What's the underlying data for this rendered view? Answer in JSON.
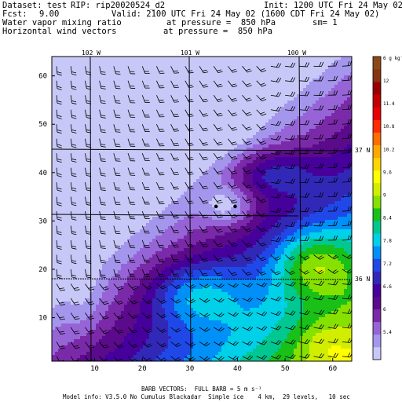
{
  "header": {
    "dataset_label": "Dataset: test",
    "rip_label": "RIP: rip20020524_d2",
    "init": "Init: 1200 UTC Fri 24 May 02",
    "fcst_label": "Fcst:",
    "fcst_value": "9.00",
    "valid": "Valid: 2100 UTC Fri 24 May 02 (1600 CDT Fri 24 May 02)",
    "field1_name": "Water vapor mixing ratio",
    "field1_level": "at pressure =  850 hPa",
    "field1_extra": "sm= 1",
    "field2_name": "Horizontal wind vectors",
    "field2_level": "at pressure =  850 hPa"
  },
  "footer": {
    "barb_note": "BARB VECTORS:  FULL BARB = 5 m s⁻¹",
    "model_info": "Model info: V3.5.0 No Cumulus Blackadar  Simple ice    4 km,  29 levels,   10 sec"
  },
  "map": {
    "x_range": [
      1,
      64
    ],
    "y_range": [
      1,
      64
    ],
    "x_ticks": [
      "10",
      "20",
      "30",
      "40",
      "50",
      "60"
    ],
    "y_ticks": [
      "10",
      "20",
      "30",
      "40",
      "50",
      "60"
    ],
    "lon_labels": [
      "102 W",
      "101 W",
      "100 W"
    ],
    "lat_labels": [
      "37 N",
      "36 N"
    ],
    "stations": [
      [
        35.5,
        33.0
      ],
      [
        39.5,
        33.0
      ]
    ]
  },
  "colorbar": {
    "unit_label": "g kg⁻¹",
    "labels": [
      "12",
      "11.4",
      "10.8",
      "10.2",
      "9.6",
      "9",
      "8.4",
      "7.8",
      "7.2",
      "6.6",
      "6",
      "5.4"
    ],
    "colors": [
      "#c8c8f8",
      "#a496ec",
      "#9664d6",
      "#7a2aa8",
      "#5a0a8a",
      "#46009c",
      "#3228b8",
      "#2048e8",
      "#0090f8",
      "#00d0e8",
      "#00c890",
      "#18c018",
      "#86e000",
      "#d2ee00",
      "#ffff00",
      "#ffd400",
      "#ffa800",
      "#ff6c00",
      "#ff2a00",
      "#e80000",
      "#c20000",
      "#9a0000",
      "#883410",
      "#8a4a18"
    ]
  }
}
